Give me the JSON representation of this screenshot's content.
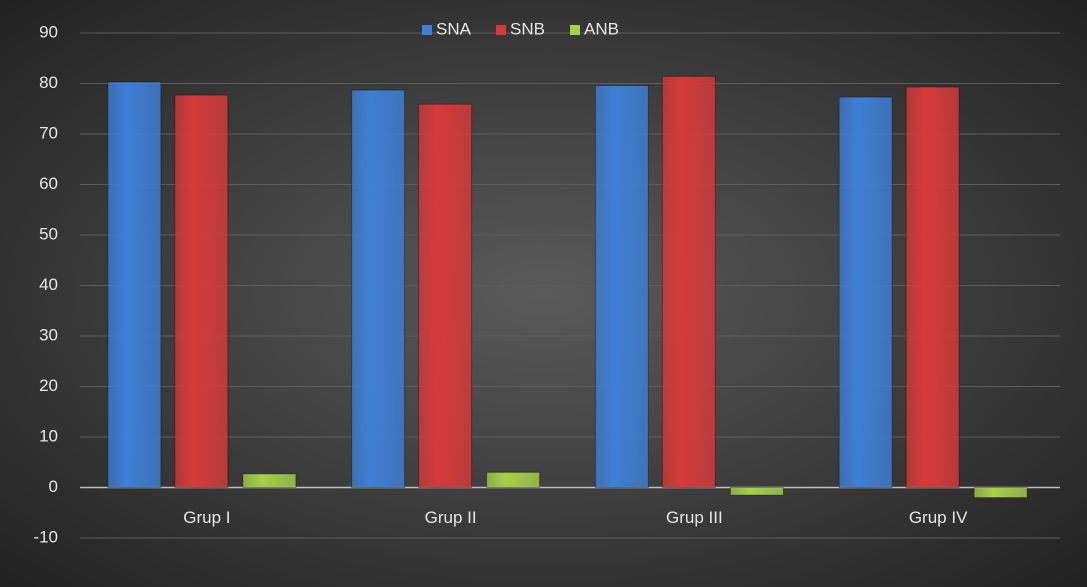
{
  "chart_data": {
    "type": "bar",
    "categories": [
      "Grup I",
      "Grup II",
      "Grup III",
      "Grup IV"
    ],
    "series": [
      {
        "name": "SNA",
        "color": "#3f7fd6",
        "values": [
          80.3,
          78.7,
          79.6,
          77.3
        ]
      },
      {
        "name": "SNB",
        "color": "#d63a3a",
        "values": [
          77.7,
          75.9,
          81.4,
          79.3
        ]
      },
      {
        "name": "ANB",
        "color": "#a6d04a",
        "values": [
          2.7,
          3.0,
          -1.5,
          -2.0
        ]
      }
    ],
    "ylim": [
      -10,
      90
    ],
    "yticks": [
      -10,
      0,
      10,
      20,
      30,
      40,
      50,
      60,
      70,
      80,
      90
    ],
    "grid": true,
    "legend": "top"
  }
}
